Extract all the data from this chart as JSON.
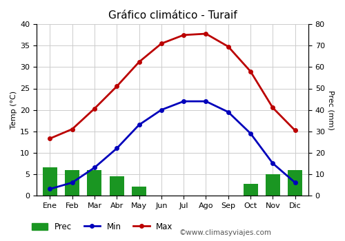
{
  "title": "Gráfico climático - Turaif",
  "months": [
    "Ene",
    "Feb",
    "Mar",
    "Abr",
    "May",
    "Jun",
    "Jul",
    "Ago",
    "Sep",
    "Oct",
    "Nov",
    "Dic"
  ],
  "prec": [
    6.5,
    6.0,
    6.0,
    4.5,
    2.0,
    0,
    0,
    0,
    0,
    2.7,
    5.0,
    6.0
  ],
  "temp_min": [
    1.5,
    3.0,
    6.5,
    11.0,
    16.5,
    20.0,
    22.0,
    22.0,
    19.5,
    14.5,
    7.5,
    3.0
  ],
  "temp_max": [
    13.3,
    15.5,
    20.3,
    25.5,
    31.2,
    35.5,
    37.5,
    37.8,
    34.8,
    29.0,
    20.5,
    15.2
  ],
  "temp_ylim": [
    0,
    40
  ],
  "prec_ylim": [
    0,
    80
  ],
  "temp_yticks": [
    0,
    5,
    10,
    15,
    20,
    25,
    30,
    35,
    40
  ],
  "prec_yticks": [
    0,
    10,
    20,
    30,
    40,
    50,
    60,
    70,
    80
  ],
  "bar_color": "#1a9622",
  "line_min_color": "#0000bb",
  "line_max_color": "#bb0000",
  "background_color": "#ffffff",
  "grid_color": "#cccccc",
  "ylabel_left": "Temp (°C)",
  "ylabel_right": "Prec (mm)",
  "legend_prec": "Prec",
  "legend_min": "Min",
  "legend_max": "Max",
  "watermark": "©www.climasyviajes.com",
  "title_fontsize": 11,
  "label_fontsize": 8,
  "tick_fontsize": 8,
  "legend_fontsize": 8.5
}
